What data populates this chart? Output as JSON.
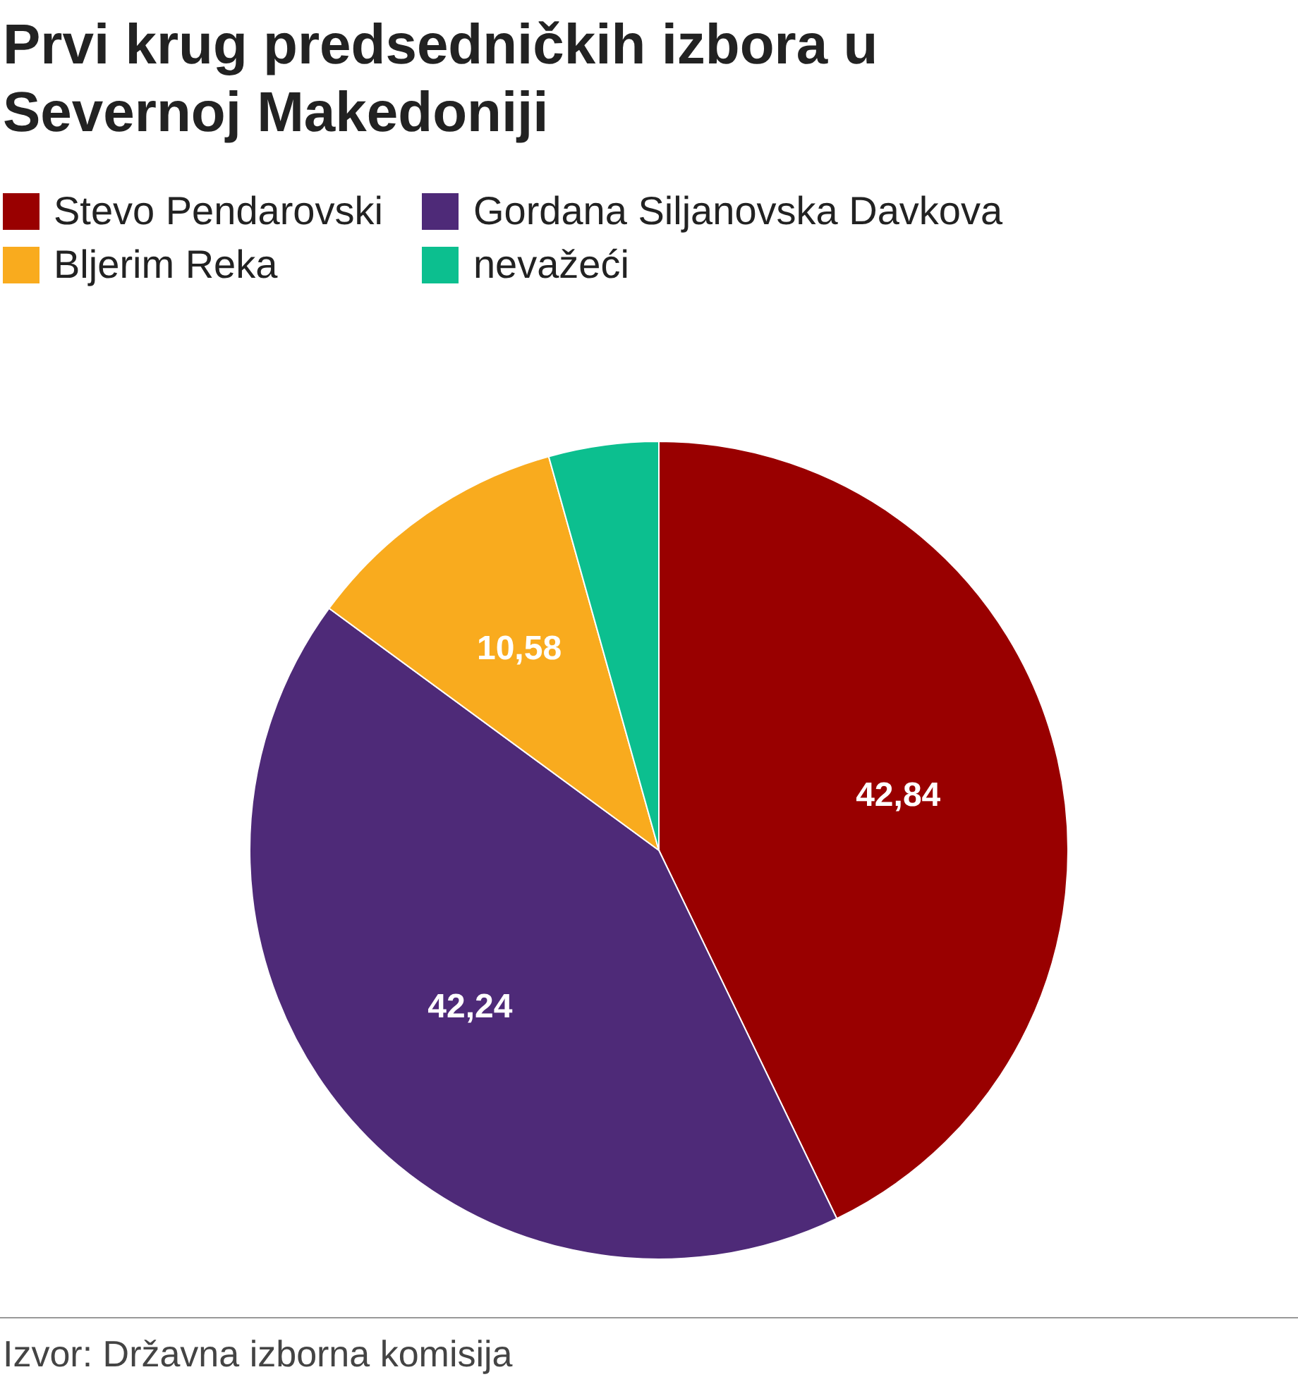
{
  "chart_data": {
    "type": "pie",
    "title": "Prvi krug predsedničkih izbora u Severnoj Makedoniji",
    "categories": [
      "Stevo Pendarovski",
      "Gordana Siljanovska Davkova",
      "Bljerim Reka",
      "nevažeći"
    ],
    "values": [
      42.84,
      42.24,
      10.58,
      4.34
    ],
    "value_labels": [
      "42,84",
      "42,24",
      "10,58",
      null
    ],
    "colors": [
      "#990000",
      "#4e2a78",
      "#f9ab1e",
      "#0cbf8f"
    ],
    "legend": "top left",
    "annotations": [
      "Izvor: Državna izborna komisija"
    ]
  }
}
